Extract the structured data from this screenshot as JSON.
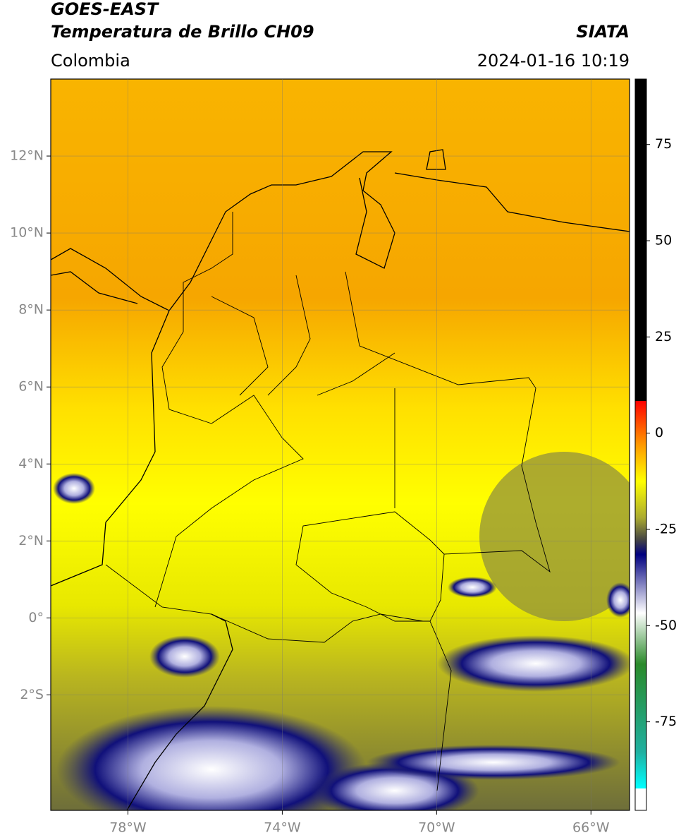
{
  "header": {
    "title": "GOES-EAST",
    "subtitle": "Temperatura de Brillo CH09",
    "source": "SIATA",
    "region": "Colombia",
    "datetime": "2024-01-16 10:19"
  },
  "map": {
    "xlim": [
      -80,
      -65
    ],
    "ylim": [
      -5,
      14
    ],
    "grid": true,
    "xticks": [
      {
        "value": -78,
        "label": "78°W"
      },
      {
        "value": -74,
        "label": "74°W"
      },
      {
        "value": -70,
        "label": "70°W"
      },
      {
        "value": -66,
        "label": "66°W"
      }
    ],
    "yticks": [
      {
        "value": 12,
        "label": "12°N"
      },
      {
        "value": 10,
        "label": "10°N"
      },
      {
        "value": 8,
        "label": "8°N"
      },
      {
        "value": 6,
        "label": "6°N"
      },
      {
        "value": 4,
        "label": "4°N"
      },
      {
        "value": 2,
        "label": "2°N"
      },
      {
        "value": 0,
        "label": "0°"
      },
      {
        "value": -2,
        "label": "2°S"
      }
    ]
  },
  "colorbar": {
    "lim": [
      -98,
      92
    ],
    "ticks": [
      75,
      50,
      25,
      0,
      -25,
      -50,
      -75
    ]
  }
}
